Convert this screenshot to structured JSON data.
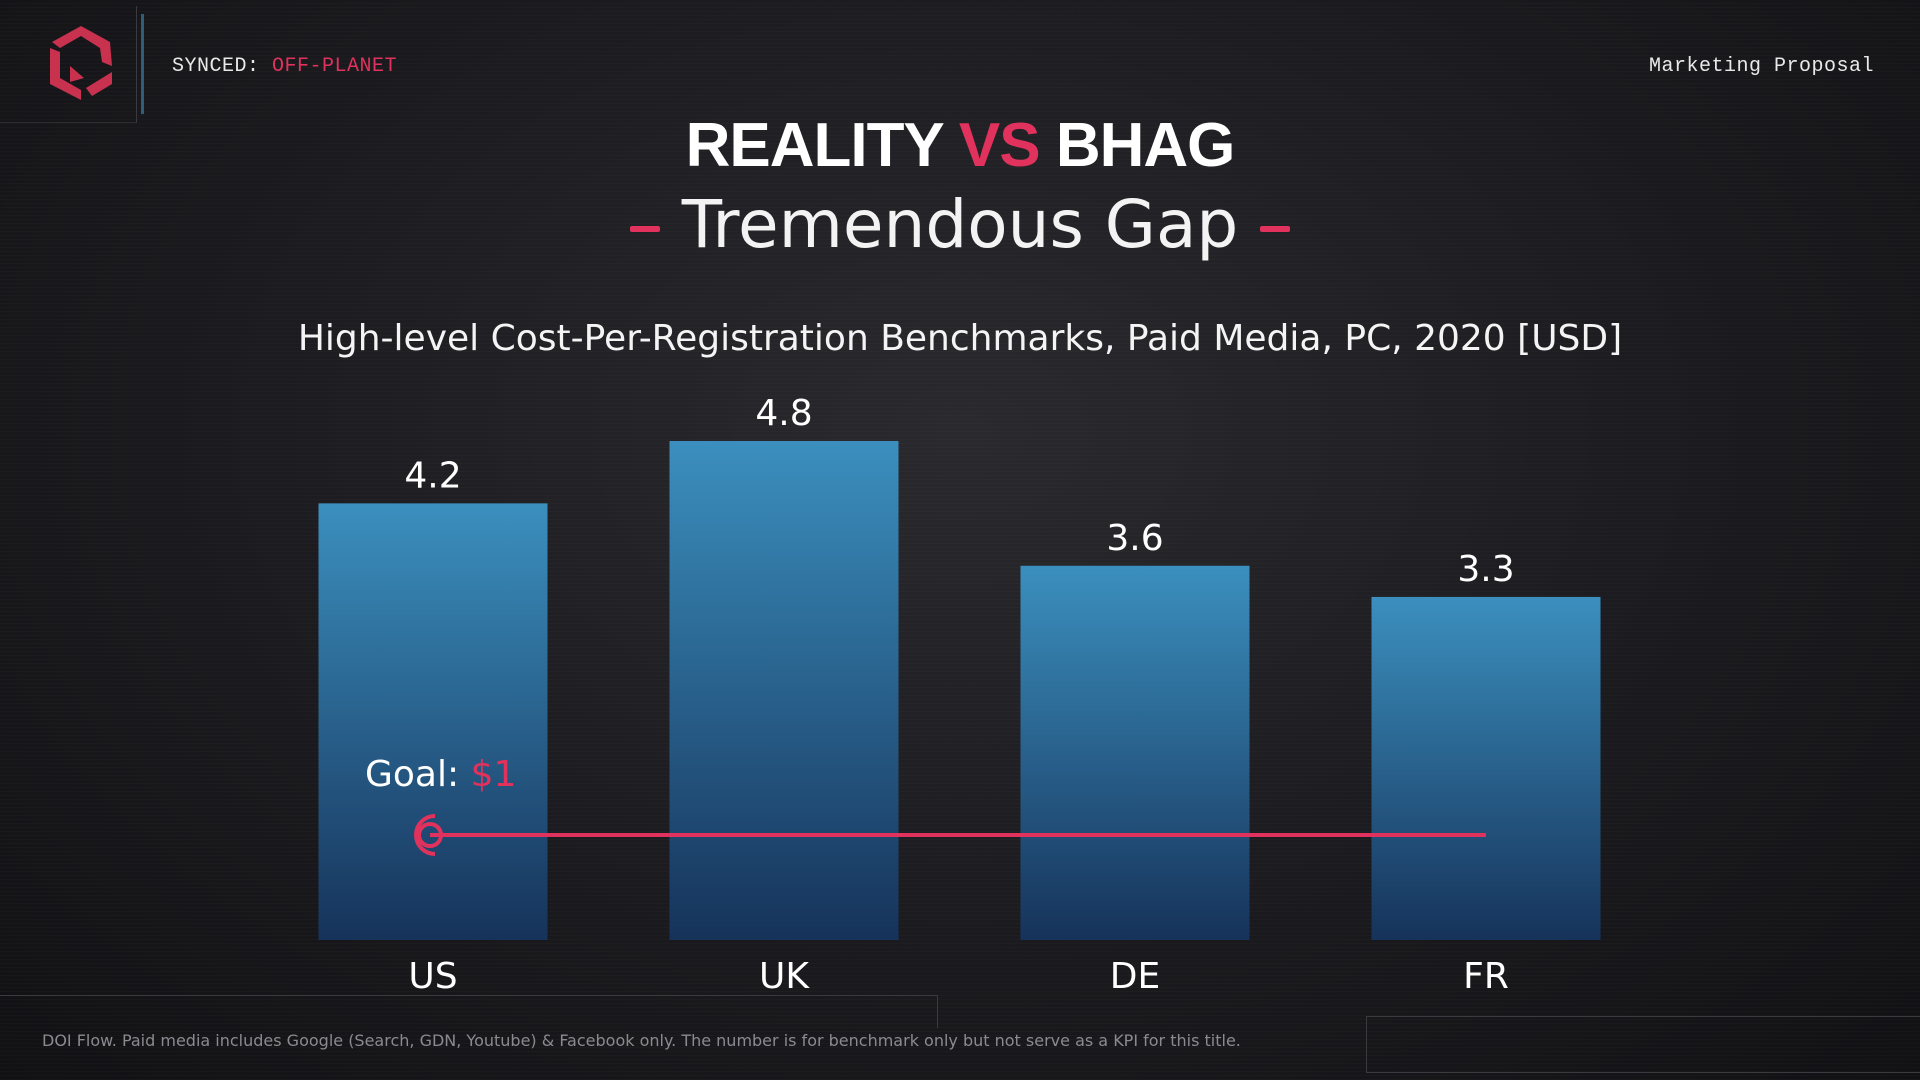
{
  "header": {
    "synced_label": "SYNCED:",
    "synced_value": "OFF-PLANET",
    "right_label": "Marketing Proposal"
  },
  "title": {
    "part1": "REALITY",
    "vs": "VS",
    "part2": "BHAG",
    "subtitle": "Tremendous Gap"
  },
  "chart_data": {
    "type": "bar",
    "title": "High-level Cost-Per-Registration Benchmarks, Paid Media, PC, 2020 [USD]",
    "categories": [
      "US",
      "UK",
      "DE",
      "FR"
    ],
    "values": [
      4.2,
      4.8,
      3.6,
      3.3
    ],
    "data_labels": [
      "4.2",
      "4.8",
      "3.6",
      "3.3"
    ],
    "ylim": [
      0,
      4.8
    ],
    "grid": false,
    "goal": {
      "label": "Goal:",
      "value_label": "$1",
      "value": 1
    }
  },
  "footnote": "DOI Flow. Paid media includes Google (Search, GDN, Youtube) & Facebook only. The number is for benchmark only but not serve as a KPI for this title.",
  "colors": {
    "accent": "#e0325c",
    "bar_top": "#3b8fbe",
    "bar_bottom": "#16335a",
    "background": "#1b1b1f"
  }
}
